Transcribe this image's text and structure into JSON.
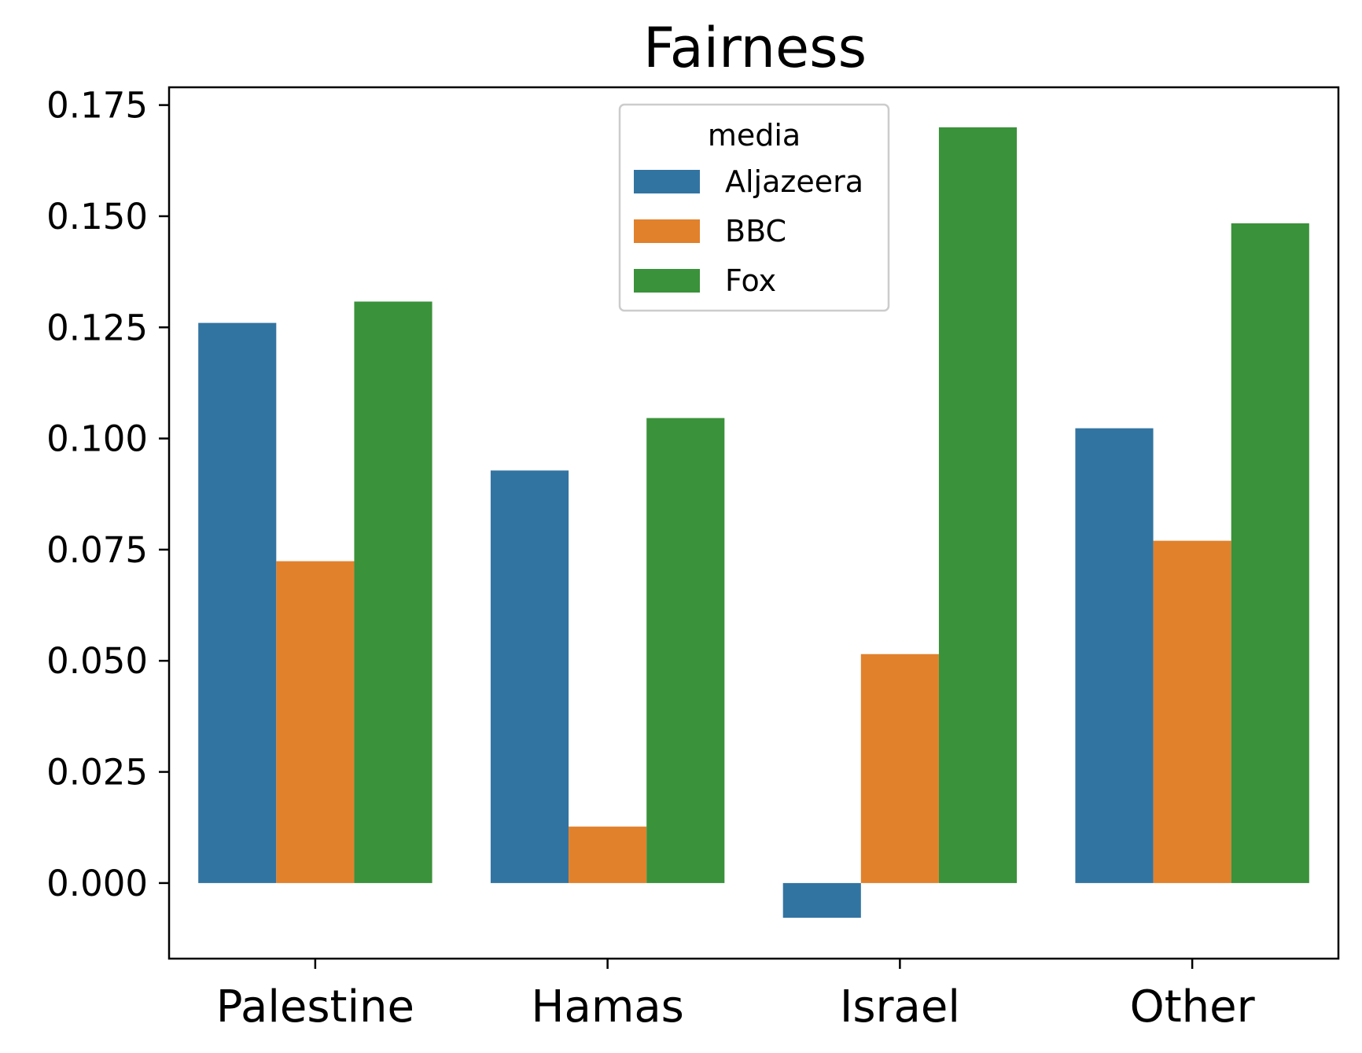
{
  "chart_data": {
    "type": "bar",
    "title": "Fairness",
    "xlabel": "",
    "ylabel": "",
    "categories": [
      "Palestine",
      "Hamas",
      "Israel",
      "Other"
    ],
    "series": [
      {
        "name": "Aljazeera",
        "color": "#3274a1",
        "values": [
          0.126,
          0.0928,
          -0.0078,
          0.1023
        ]
      },
      {
        "name": "BBC",
        "color": "#e1812c",
        "values": [
          0.0724,
          0.0127,
          0.0515,
          0.077
        ]
      },
      {
        "name": "Fox",
        "color": "#3a923a",
        "values": [
          0.1308,
          0.1046,
          0.17,
          0.1484
        ]
      }
    ],
    "ylim": [
      -0.017,
      0.179
    ],
    "yticks": [
      "0.000",
      "0.025",
      "0.050",
      "0.075",
      "0.100",
      "0.125",
      "0.150",
      "0.175"
    ],
    "grid": false,
    "legend": {
      "title": "media",
      "placement": "top-center"
    }
  }
}
